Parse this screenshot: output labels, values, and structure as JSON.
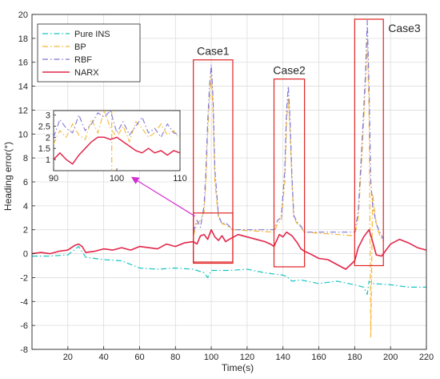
{
  "chart_data": {
    "type": "line",
    "title": "",
    "xlabel": "Time(s)",
    "ylabel": "Heading error(°)",
    "xlim": [
      0,
      220
    ],
    "ylim": [
      -8,
      20
    ],
    "xticks": [
      20,
      40,
      60,
      80,
      100,
      120,
      140,
      160,
      180,
      200,
      220
    ],
    "yticks": [
      -8,
      -6,
      -4,
      -2,
      0,
      2,
      4,
      6,
      8,
      10,
      12,
      14,
      16,
      18,
      20
    ],
    "grid": true,
    "legend_position": "top-left",
    "series": [
      {
        "name": "Pure INS",
        "color": "#17c5c1",
        "dash": "dash-dot",
        "x": [
          0,
          10,
          20,
          26,
          30,
          40,
          50,
          60,
          70,
          80,
          90,
          96,
          98,
          100,
          110,
          120,
          130,
          140,
          142,
          145,
          150,
          160,
          170,
          180,
          185,
          187,
          188,
          190,
          200,
          210,
          220
        ],
        "y": [
          -0.2,
          -0.2,
          -0.1,
          0.6,
          -0.3,
          -0.5,
          -0.6,
          -1.2,
          -1.3,
          -1.2,
          -1.3,
          -1.6,
          -2.0,
          -1.4,
          -1.4,
          -1.3,
          -1.6,
          -1.8,
          -1.9,
          -2.3,
          -2.2,
          -2.5,
          -2.3,
          -2.6,
          -2.8,
          -3.4,
          -2.3,
          -2.5,
          -2.6,
          -2.8,
          -2.8
        ]
      },
      {
        "name": "BP",
        "color": "#f5b733",
        "dash": "dash-dot",
        "x": [
          90,
          92,
          94,
          96,
          97,
          98,
          99,
          100,
          101,
          102,
          104,
          106,
          108,
          110,
          112,
          135,
          137,
          139,
          141,
          142,
          143,
          144,
          145,
          146,
          148,
          150,
          152,
          180,
          182,
          184,
          186,
          187,
          188,
          189,
          190,
          192,
          194,
          196
        ],
        "y": [
          1.5,
          2.5,
          2.8,
          3.5,
          6.0,
          10.0,
          13.0,
          15.0,
          12.0,
          6.0,
          3.0,
          2.5,
          2.4,
          2.2,
          2.0,
          1.8,
          2.5,
          2.8,
          6.0,
          11.0,
          13.0,
          10.0,
          6.0,
          3.0,
          2.5,
          2.2,
          1.8,
          1.5,
          3.0,
          8.0,
          14.0,
          18.0,
          12.0,
          -7.0,
          5.0,
          2.5,
          1.5,
          1.0
        ]
      },
      {
        "name": "RBF",
        "color": "#7f78d8",
        "dash": "dash-dot",
        "x": [
          90,
          92,
          94,
          96,
          97,
          98,
          99,
          100,
          101,
          102,
          104,
          106,
          108,
          110,
          112,
          135,
          137,
          139,
          141,
          142,
          143,
          144,
          145,
          146,
          148,
          150,
          152,
          180,
          182,
          184,
          186,
          187,
          188,
          189,
          190,
          192,
          194,
          196
        ],
        "y": [
          1.8,
          2.8,
          2.2,
          4.0,
          7.0,
          11.0,
          14.0,
          15.8,
          13.0,
          7.0,
          3.2,
          2.5,
          2.6,
          2.3,
          2.0,
          2.0,
          2.8,
          3.0,
          7.0,
          12.0,
          14.0,
          11.0,
          6.5,
          3.2,
          2.6,
          2.3,
          1.8,
          1.8,
          3.5,
          9.0,
          15.0,
          19.5,
          14.0,
          6.0,
          4.0,
          2.5,
          1.8,
          1.2
        ]
      },
      {
        "name": "NARX",
        "color": "#e2264a",
        "dash": "solid",
        "x": [
          0,
          5,
          10,
          15,
          20,
          24,
          26,
          28,
          30,
          35,
          40,
          45,
          50,
          55,
          60,
          65,
          70,
          75,
          80,
          85,
          90,
          92,
          94,
          96,
          98,
          100,
          102,
          104,
          106,
          108,
          110,
          115,
          120,
          125,
          130,
          133,
          135,
          138,
          140,
          142,
          145,
          148,
          150,
          152,
          155,
          160,
          165,
          170,
          175,
          180,
          182,
          185,
          188,
          190,
          192,
          195,
          200,
          205,
          210,
          215,
          220
        ],
        "y": [
          0.0,
          0.1,
          0.0,
          0.2,
          0.3,
          0.7,
          0.8,
          0.6,
          0.1,
          0.2,
          0.4,
          0.3,
          0.5,
          0.3,
          0.6,
          0.5,
          0.4,
          0.8,
          0.6,
          0.9,
          1.0,
          0.8,
          1.5,
          1.6,
          1.2,
          2.0,
          1.4,
          1.1,
          1.5,
          1.0,
          1.2,
          1.6,
          1.4,
          1.2,
          1.0,
          0.8,
          0.6,
          1.6,
          1.4,
          1.8,
          1.5,
          0.9,
          0.4,
          0.2,
          0.0,
          -0.4,
          -0.5,
          -0.9,
          -1.3,
          -0.6,
          0.5,
          1.4,
          2.0,
          1.0,
          -0.1,
          -0.2,
          0.8,
          1.2,
          0.9,
          0.5,
          0.3
        ]
      }
    ],
    "boxes": [
      {
        "label": "Case1",
        "x": [
          90,
          112
        ],
        "y": [
          -0.8,
          16.2
        ]
      },
      {
        "label": "Case2",
        "x": [
          135,
          152
        ],
        "y": [
          -1.1,
          14.6
        ]
      },
      {
        "label": "Case3",
        "x": [
          180,
          196
        ],
        "y": [
          -1.0,
          19.6
        ]
      }
    ],
    "zoom_region": {
      "x": [
        90,
        112
      ],
      "y": [
        -0.7,
        3.4
      ]
    },
    "inset": {
      "xlim": [
        90,
        110
      ],
      "ylim": [
        0.5,
        3.2
      ],
      "xticks": [
        90,
        100,
        110
      ],
      "yticks": [
        1,
        1.5,
        2,
        2.5,
        3
      ],
      "ytick_labels": [
        "1",
        "1.5",
        "2",
        "2.5",
        "3"
      ],
      "bp": {
        "x": [
          90,
          91,
          92,
          93,
          94,
          95,
          96,
          97,
          98,
          99,
          100,
          101,
          102,
          103,
          104,
          105,
          106,
          107,
          108,
          109,
          110
        ],
        "y": [
          1.7,
          2.3,
          2.0,
          2.6,
          2.1,
          1.9,
          2.8,
          2.2,
          3.2,
          2.4,
          2.0,
          2.5,
          1.8,
          2.7,
          2.4,
          2.0,
          2.2,
          2.6,
          2.1,
          2.3,
          1.9
        ]
      },
      "rbf": {
        "x": [
          90,
          91,
          92,
          93,
          94,
          95,
          96,
          97,
          98,
          99,
          100,
          101,
          102,
          103,
          104,
          105,
          106,
          107,
          108,
          109,
          110
        ],
        "y": [
          2.0,
          2.8,
          2.4,
          2.2,
          3.0,
          2.3,
          2.6,
          3.1,
          2.9,
          3.2,
          2.2,
          2.7,
          2.1,
          2.5,
          2.9,
          2.2,
          2.4,
          2.0,
          2.6,
          2.2,
          2.1
        ]
      },
      "narx": {
        "x": [
          90,
          91,
          92,
          93,
          94,
          95,
          96,
          97,
          98,
          99,
          100,
          101,
          102,
          103,
          104,
          105,
          106,
          107,
          108,
          109,
          110
        ],
        "y": [
          1.0,
          1.3,
          1.0,
          0.8,
          1.2,
          1.5,
          1.8,
          2.0,
          2.0,
          1.9,
          2.0,
          1.8,
          1.6,
          1.4,
          1.3,
          1.5,
          1.3,
          1.4,
          1.2,
          1.4,
          1.3
        ]
      }
    }
  }
}
